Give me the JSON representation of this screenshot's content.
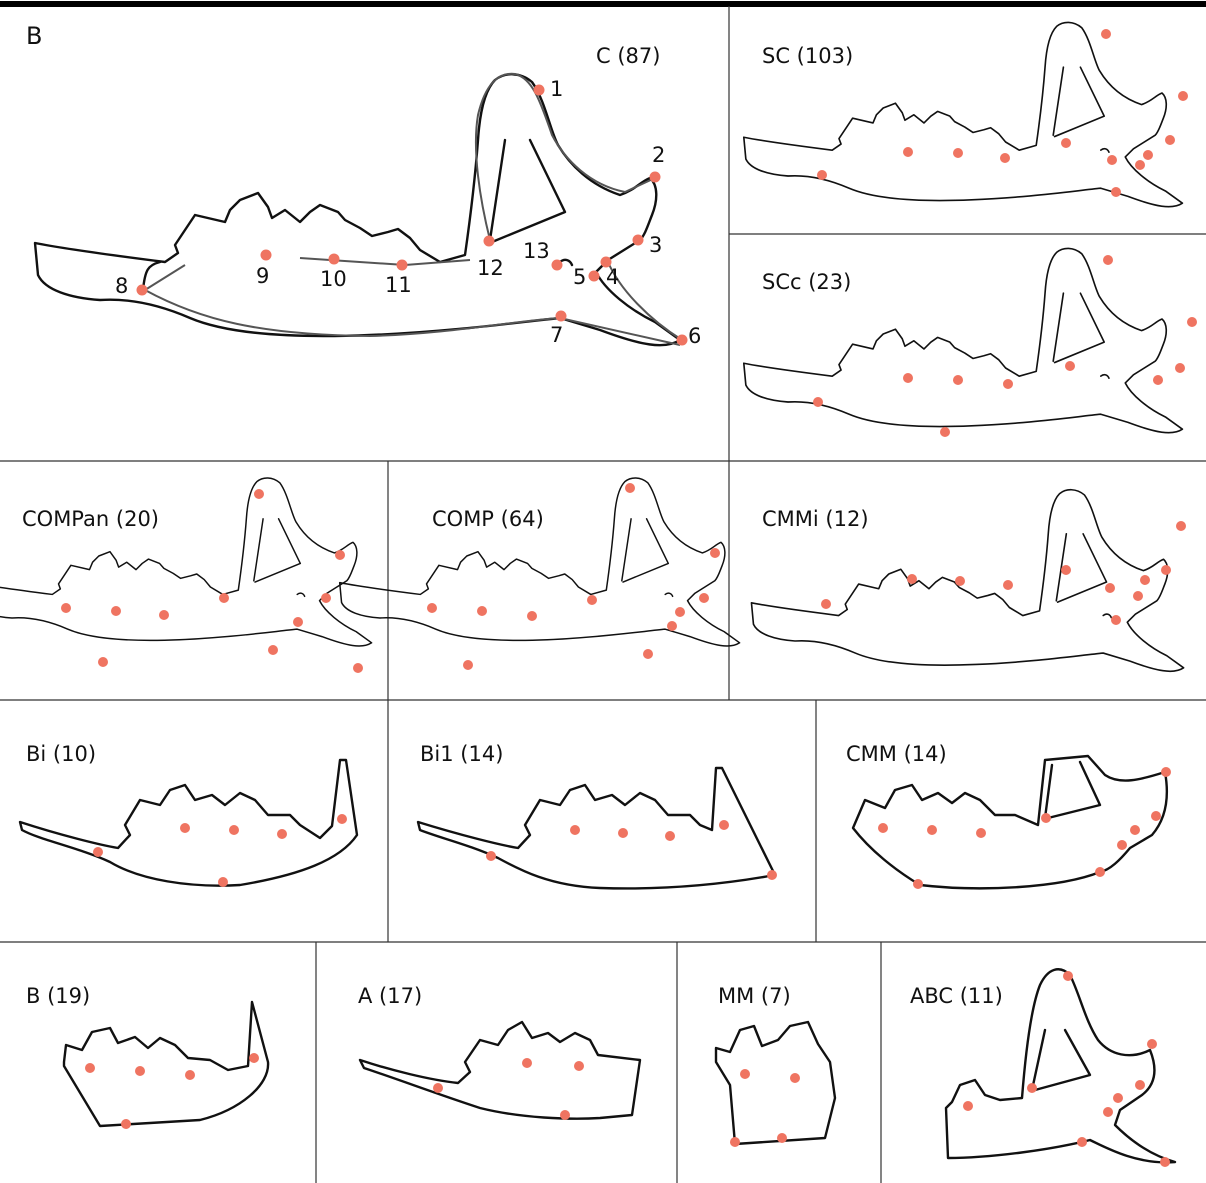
{
  "figure": {
    "panel_letter": "B",
    "landmark_color": "#ef7461",
    "semilandmark_color": "#555555",
    "landmark_numbers": [
      "1",
      "2",
      "3",
      "4",
      "5",
      "6",
      "7",
      "8",
      "9",
      "10",
      "11",
      "12",
      "13"
    ],
    "panels": [
      {
        "id": "C",
        "label": "C (87)"
      },
      {
        "id": "SC",
        "label": "SC (103)"
      },
      {
        "id": "SCc",
        "label": "SCc (23)"
      },
      {
        "id": "COMPan",
        "label": "COMPan (20)"
      },
      {
        "id": "COMP",
        "label": "COMP (64)"
      },
      {
        "id": "CMMi",
        "label": "CMMi (12)"
      },
      {
        "id": "Bi",
        "label": "Bi (10)"
      },
      {
        "id": "Bi1",
        "label": "Bi1 (14)"
      },
      {
        "id": "CMM",
        "label": "CMM (14)"
      },
      {
        "id": "B",
        "label": "B (19)"
      },
      {
        "id": "A",
        "label": "A (17)"
      },
      {
        "id": "MM",
        "label": "MM (7)"
      },
      {
        "id": "ABC",
        "label": "ABC (11)"
      }
    ]
  }
}
